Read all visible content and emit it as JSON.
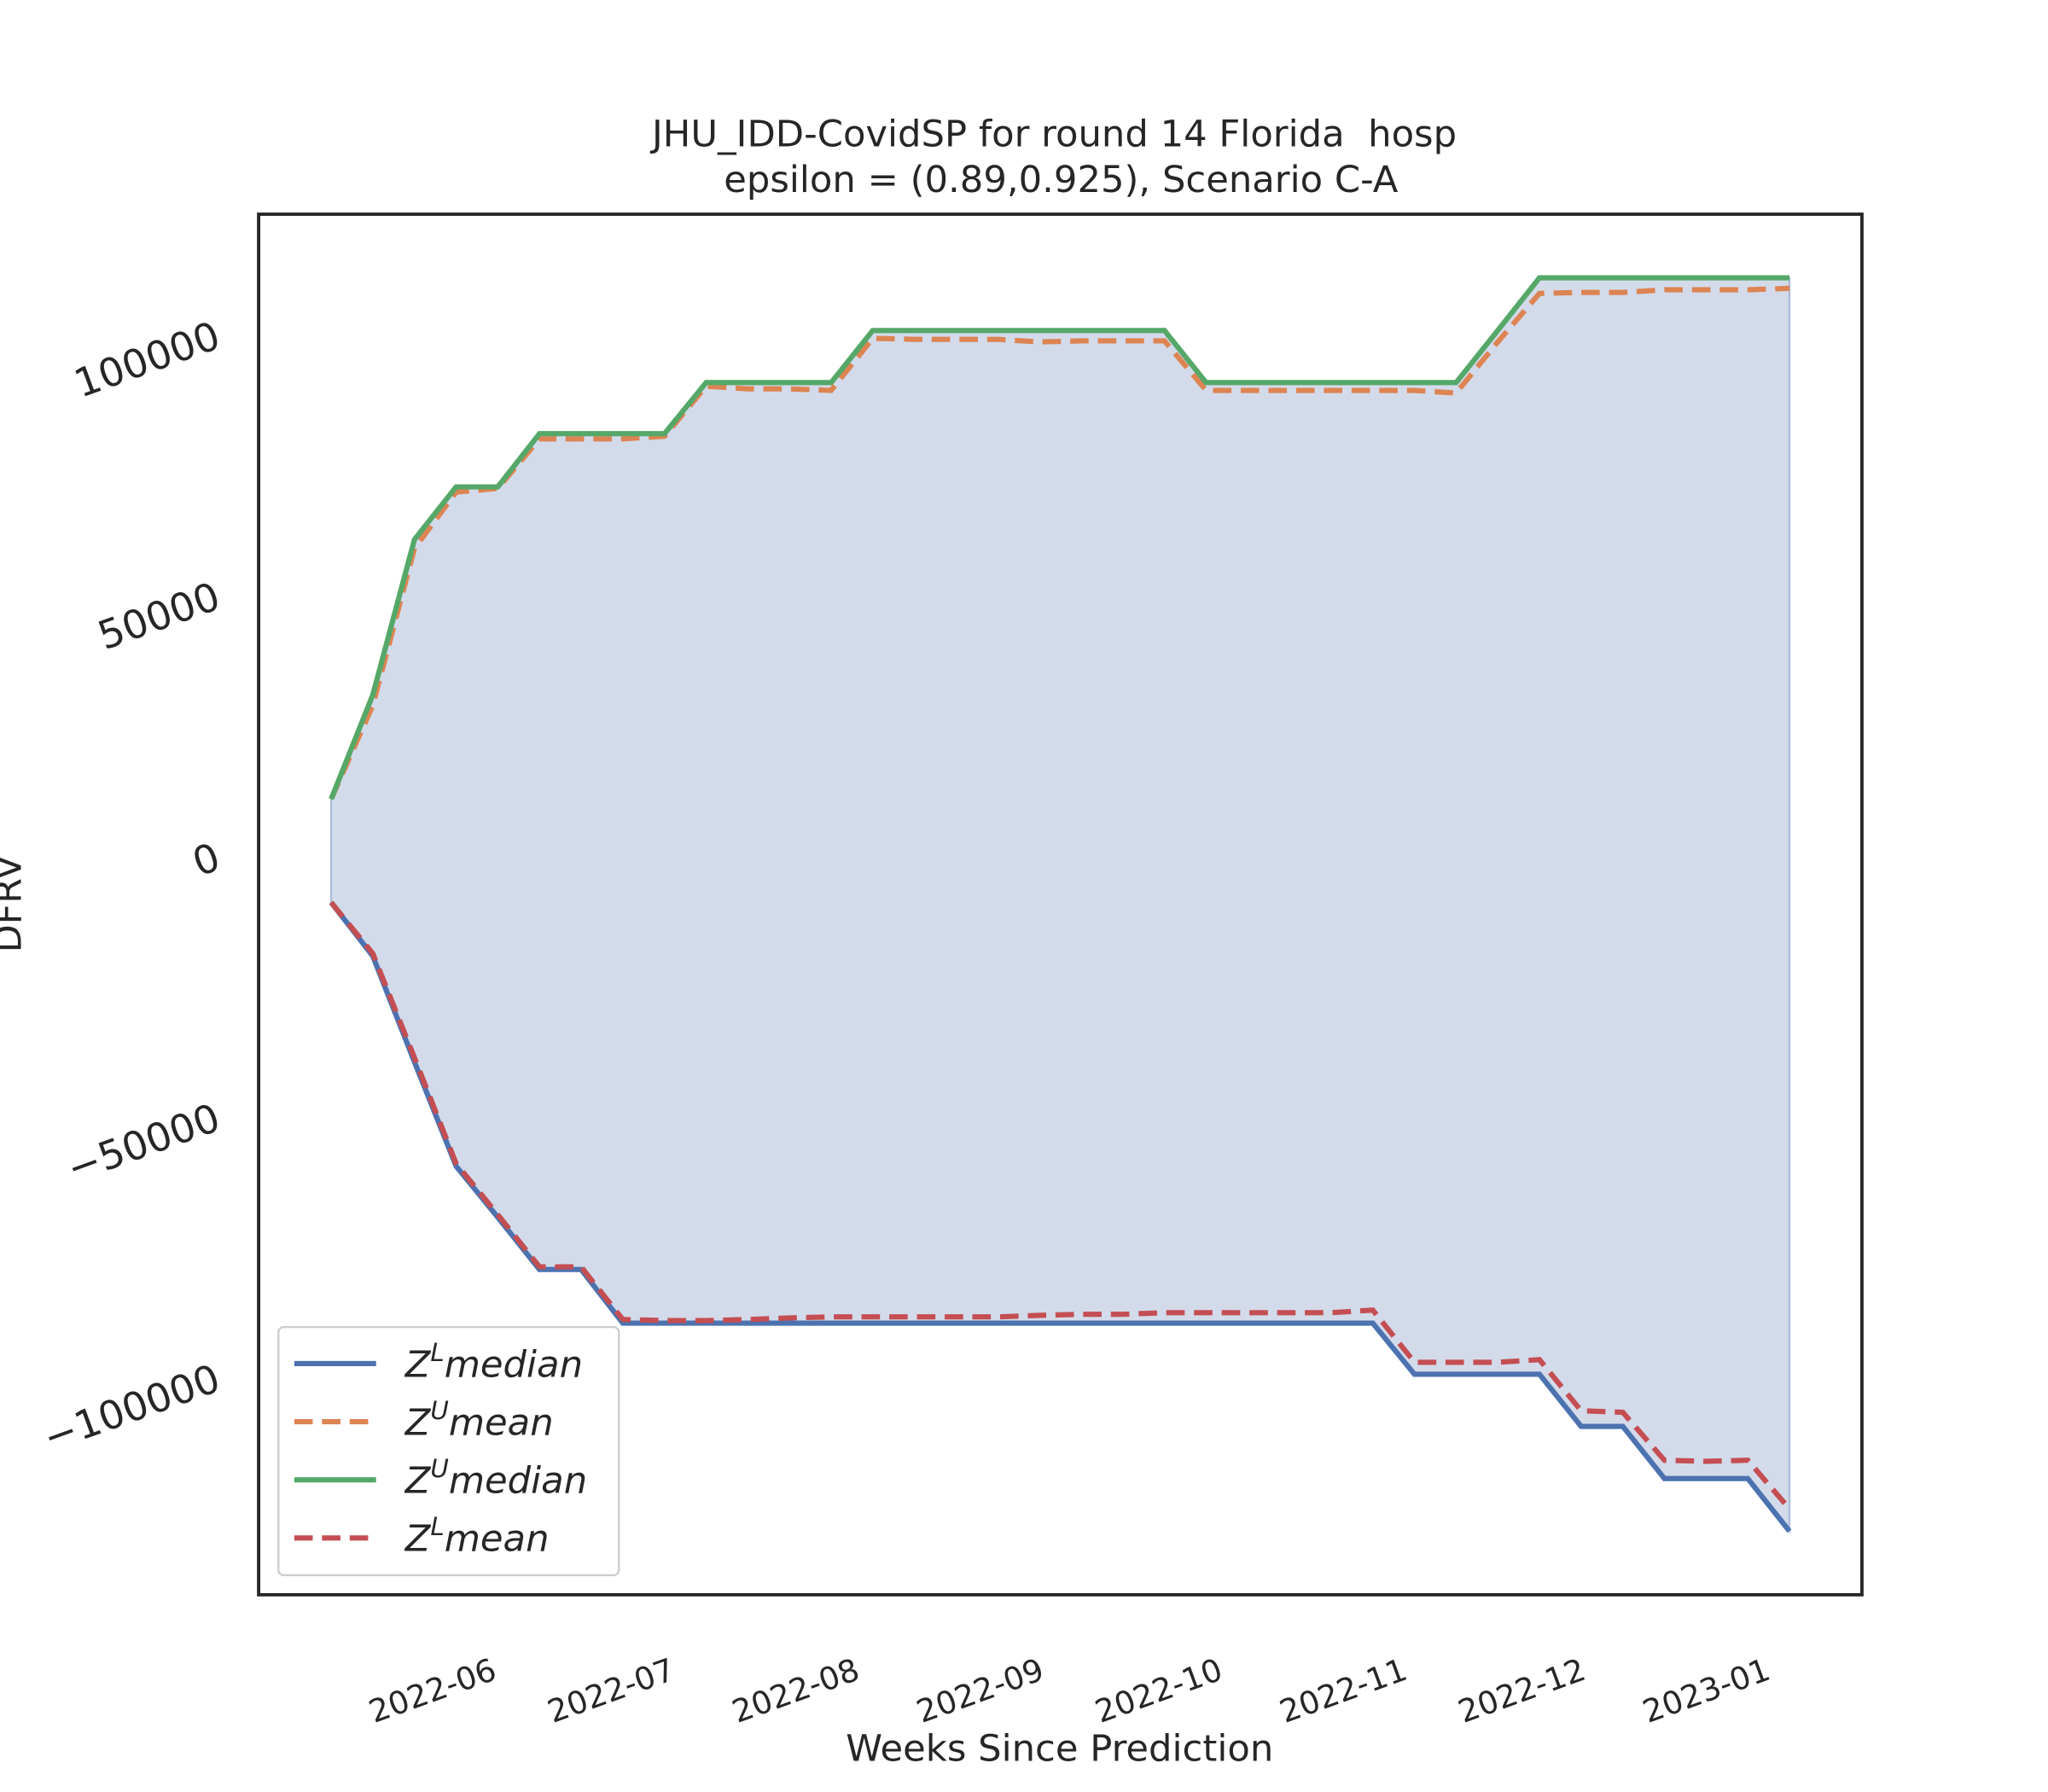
{
  "chart_data": {
    "type": "line",
    "title": "JHU_IDD-CovidSP for round 14 Florida  hosp",
    "subtitle": "epsilon = (0.89,0.925), Scenario C-A",
    "x_label": "Weeks Since Prediction",
    "y_label": "DFRV",
    "x": [
      0,
      1,
      2,
      3,
      4,
      5,
      6,
      7,
      8,
      9,
      10,
      11,
      12,
      13,
      14,
      15,
      16,
      17,
      18,
      19,
      20,
      21,
      22,
      23,
      24,
      25,
      26,
      27,
      28,
      29,
      30,
      31,
      32,
      33,
      34,
      35
    ],
    "xlim": [
      -1.74,
      36.74
    ],
    "xticks": [
      {
        "value": 3.571,
        "label": "2022-06"
      },
      {
        "value": 7.857,
        "label": "2022-07"
      },
      {
        "value": 12.286,
        "label": "2022-08"
      },
      {
        "value": 16.714,
        "label": "2022-09"
      },
      {
        "value": 21.0,
        "label": "2022-10"
      },
      {
        "value": 25.429,
        "label": "2022-11"
      },
      {
        "value": 29.714,
        "label": "2022-12"
      },
      {
        "value": 34.143,
        "label": "2023-01"
      }
    ],
    "ylim": [
      -141300,
      123500
    ],
    "yticks": [
      {
        "value": -100000,
        "label": "−100000"
      },
      {
        "value": -50000,
        "label": "−50000"
      },
      0,
      50000,
      100000
    ],
    "grid": false,
    "legend": "lower left",
    "fill_color": "#d3dbeb",
    "series": [
      {
        "name": "ZLmedian",
        "color": "#4c72b0",
        "dashed": false,
        "values": [
          -8500,
          -18800,
          -39100,
          -59100,
          -68900,
          -78900,
          -78900,
          -89200,
          -89200,
          -89200,
          -89200,
          -89200,
          -89200,
          -89200,
          -89200,
          -89200,
          -89200,
          -89200,
          -89200,
          -89200,
          -89200,
          -89200,
          -89200,
          -89200,
          -89200,
          -89200,
          -99000,
          -99000,
          -99000,
          -99000,
          -109000,
          -109000,
          -119000,
          -119000,
          -119000,
          -129100
        ]
      },
      {
        "name": "ZUmean",
        "color": "#dd8452",
        "dashed": true,
        "values": [
          11300,
          29300,
          59400,
          70200,
          70900,
          80400,
          80400,
          80400,
          80900,
          90500,
          90000,
          90000,
          89700,
          99700,
          99500,
          99500,
          99500,
          99000,
          99200,
          99200,
          99200,
          89700,
          89700,
          89700,
          89700,
          89700,
          89700,
          89200,
          99000,
          108300,
          108500,
          108500,
          109000,
          109000,
          109000,
          109300
        ]
      },
      {
        "name": "ZUmedian",
        "color": "#55a868",
        "dashed": false,
        "values": [
          11300,
          31300,
          61100,
          71200,
          71200,
          81400,
          81400,
          81400,
          81400,
          91200,
          91200,
          91200,
          91200,
          101200,
          101200,
          101200,
          101200,
          101200,
          101200,
          101200,
          101200,
          91200,
          91200,
          91200,
          91200,
          91200,
          91200,
          91200,
          101200,
          111300,
          111300,
          111300,
          111300,
          111300,
          111300,
          111300
        ]
      },
      {
        "name": "ZLmean",
        "color": "#c44e52",
        "dashed": true,
        "values": [
          -8500,
          -18300,
          -38300,
          -58600,
          -68400,
          -78400,
          -78400,
          -88500,
          -88700,
          -88700,
          -88500,
          -88200,
          -88000,
          -88000,
          -88000,
          -88000,
          -88000,
          -87700,
          -87500,
          -87500,
          -87200,
          -87200,
          -87200,
          -87200,
          -87200,
          -86700,
          -96700,
          -96700,
          -96700,
          -96200,
          -106000,
          -106300,
          -115500,
          -115700,
          -115500,
          -124800
        ]
      }
    ]
  }
}
